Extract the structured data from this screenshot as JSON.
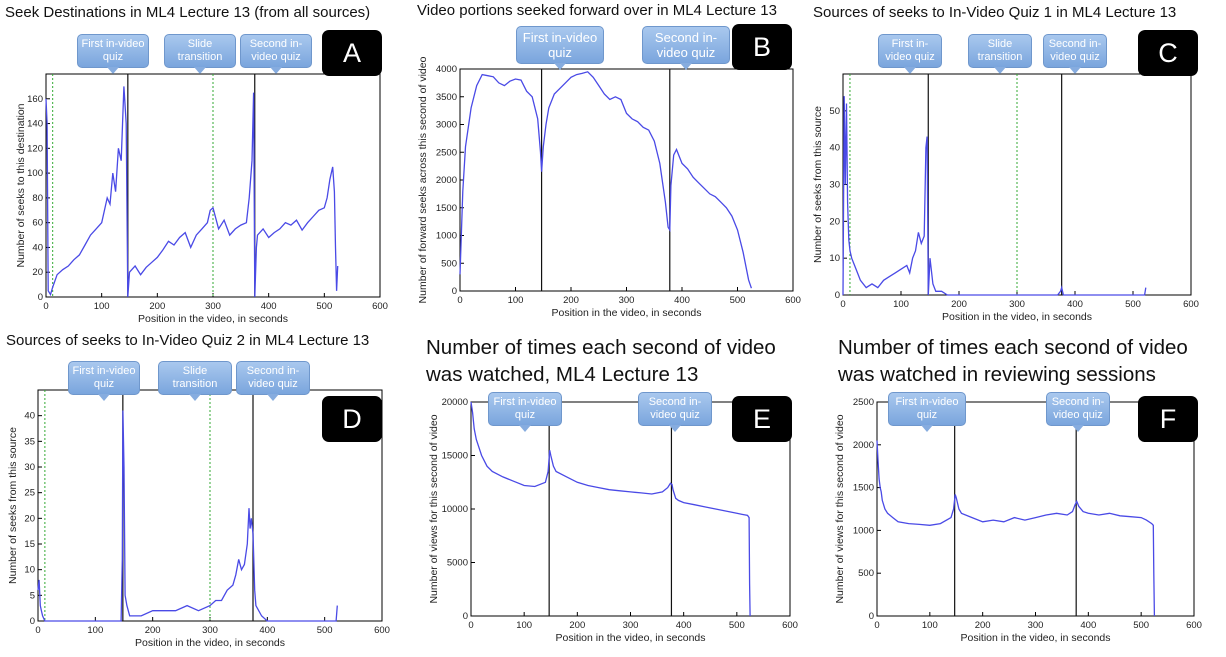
{
  "colors": {
    "line": "#4a4ae6",
    "marker": "#111111",
    "dotted": "#33aa33",
    "callout": "#8db3e6",
    "badge": "#000000"
  },
  "panels": [
    {
      "id": "A",
      "title": "Seek Destinations in ML4 Lecture 13 (from all sources)",
      "badge": "A",
      "callouts": [
        "First in-video quiz",
        "Slide transition",
        "Second in-video quiz"
      ]
    },
    {
      "id": "B",
      "title": "Video portions seeked forward over in ML4 Lecture 13",
      "badge": "B",
      "callouts": [
        "First in-video quiz",
        "Second in-video quiz"
      ]
    },
    {
      "id": "C",
      "title": "Sources of seeks to In-Video Quiz 1 in ML4 Lecture 13",
      "badge": "C",
      "callouts": [
        "First in-video quiz",
        "Slide transition",
        "Second in-video quiz"
      ]
    },
    {
      "id": "D",
      "title": "Sources of seeks to In-Video Quiz 2 in ML4 Lecture 13",
      "badge": "D",
      "callouts": [
        "First in-video quiz",
        "Slide transition",
        "Second in-video quiz"
      ]
    },
    {
      "id": "E",
      "title": "Number of times each second of video was watched, ML4 Lecture 13",
      "badge": "E",
      "callouts": [
        "First in-video quiz",
        "Second in-video quiz"
      ]
    },
    {
      "id": "F",
      "title": "Number of times each second of video was watched in reviewing sessions",
      "badge": "F",
      "callouts": [
        "First in-video quiz",
        "Second in-video quiz"
      ]
    }
  ],
  "chart_data": [
    {
      "panel": "A",
      "type": "line",
      "title": "Seek Destinations in ML4 Lecture 13 (from all sources)",
      "xlabel": "Position in the video, in seconds",
      "ylabel": "Number of seeks to this destination",
      "xlim": [
        0,
        600
      ],
      "ylim": [
        0,
        180
      ],
      "xticks": [
        0,
        100,
        200,
        300,
        400,
        500,
        600
      ],
      "yticks": [
        0,
        20,
        40,
        60,
        80,
        100,
        120,
        140,
        160
      ],
      "markers": [
        147,
        375
      ],
      "dotted": [
        12,
        300
      ],
      "series": [
        {
          "x": [
            0,
            2,
            4,
            8,
            12,
            20,
            30,
            40,
            50,
            60,
            70,
            80,
            90,
            100,
            110,
            115,
            120,
            125,
            130,
            135,
            140,
            144,
            147,
            150,
            160,
            170,
            180,
            190,
            200,
            210,
            220,
            230,
            240,
            250,
            260,
            270,
            280,
            290,
            295,
            300,
            310,
            320,
            330,
            340,
            350,
            360,
            365,
            370,
            373,
            375,
            378,
            380,
            390,
            400,
            410,
            420,
            430,
            440,
            450,
            460,
            470,
            480,
            490,
            500,
            505,
            510,
            515,
            518,
            520,
            522,
            524
          ],
          "y": [
            160,
            140,
            5,
            2,
            8,
            18,
            22,
            25,
            30,
            34,
            42,
            50,
            55,
            60,
            80,
            75,
            100,
            85,
            120,
            110,
            170,
            140,
            0,
            20,
            25,
            18,
            24,
            28,
            32,
            38,
            45,
            42,
            48,
            52,
            40,
            50,
            55,
            60,
            70,
            72,
            55,
            62,
            50,
            55,
            58,
            60,
            80,
            110,
            165,
            0,
            40,
            50,
            55,
            48,
            52,
            55,
            60,
            58,
            62,
            54,
            60,
            65,
            70,
            72,
            80,
            95,
            105,
            85,
            40,
            5,
            25
          ]
        }
      ]
    },
    {
      "panel": "B",
      "type": "line",
      "title": "Video portions seeked forward over in ML4 Lecture 13",
      "xlabel": "Position in the video, in seconds",
      "ylabel": "Number of forward seeks across this second of video",
      "xlim": [
        0,
        600
      ],
      "ylim": [
        0,
        4000
      ],
      "xticks": [
        0,
        100,
        200,
        300,
        400,
        500,
        600
      ],
      "yticks": [
        0,
        500,
        1000,
        1500,
        2000,
        2500,
        3000,
        3500,
        4000
      ],
      "markers": [
        147,
        378
      ],
      "dotted": [],
      "series": [
        {
          "x": [
            0,
            5,
            10,
            20,
            30,
            40,
            50,
            60,
            70,
            80,
            90,
            100,
            110,
            120,
            130,
            140,
            145,
            147,
            150,
            155,
            160,
            170,
            180,
            190,
            200,
            210,
            220,
            230,
            240,
            250,
            260,
            270,
            280,
            290,
            300,
            310,
            320,
            330,
            340,
            350,
            360,
            370,
            375,
            378,
            380,
            385,
            390,
            400,
            410,
            420,
            430,
            440,
            450,
            460,
            470,
            480,
            490,
            500,
            510,
            520,
            525
          ],
          "y": [
            300,
            1800,
            2600,
            3300,
            3700,
            3900,
            3880,
            3860,
            3750,
            3700,
            3780,
            3820,
            3800,
            3600,
            3500,
            3100,
            2500,
            2150,
            2600,
            3000,
            3300,
            3550,
            3650,
            3750,
            3850,
            3900,
            3920,
            3950,
            3850,
            3700,
            3550,
            3450,
            3500,
            3450,
            3200,
            3100,
            3050,
            2950,
            2900,
            2700,
            2300,
            1600,
            1150,
            1100,
            1900,
            2450,
            2550,
            2300,
            2200,
            2050,
            1950,
            1850,
            1750,
            1700,
            1600,
            1500,
            1350,
            1100,
            700,
            200,
            50
          ]
        }
      ]
    },
    {
      "panel": "C",
      "type": "line",
      "title": "Sources of seeks to In-Video Quiz 1 in ML4 Lecture 13",
      "xlabel": "Position in the video, in seconds",
      "ylabel": "Number of seeks from this source",
      "xlim": [
        0,
        600
      ],
      "ylim": [
        0,
        60
      ],
      "xticks": [
        0,
        100,
        200,
        300,
        400,
        500,
        600
      ],
      "yticks": [
        0,
        10,
        20,
        30,
        40,
        50
      ],
      "markers": [
        147,
        377
      ],
      "dotted": [
        12,
        300
      ],
      "series": [
        {
          "x": [
            0,
            2,
            4,
            6,
            8,
            10,
            12,
            15,
            20,
            25,
            30,
            40,
            50,
            60,
            70,
            80,
            90,
            100,
            110,
            115,
            120,
            125,
            130,
            135,
            140,
            143,
            145,
            147,
            150,
            155,
            160,
            170,
            180,
            200,
            250,
            300,
            350,
            370,
            375,
            377,
            380,
            400,
            450,
            500,
            520,
            522
          ],
          "y": [
            0,
            54,
            30,
            52,
            25,
            15,
            12,
            10,
            8,
            6,
            4,
            2,
            3,
            2,
            4,
            5,
            6,
            7,
            8,
            6,
            10,
            12,
            17,
            14,
            16,
            40,
            43,
            0,
            10,
            3,
            1,
            1,
            0,
            0,
            0,
            0,
            0,
            0,
            1,
            2,
            0,
            0,
            0,
            0,
            0,
            2
          ]
        }
      ]
    },
    {
      "panel": "D",
      "type": "line",
      "title": "Sources of seeks to In-Video Quiz 2 in ML4 Lecture 13",
      "xlabel": "Position in the video, in seconds",
      "ylabel": "Number of seeks from this source",
      "xlim": [
        0,
        600
      ],
      "ylim": [
        0,
        45
      ],
      "xticks": [
        0,
        100,
        200,
        300,
        400,
        500,
        600
      ],
      "yticks": [
        0,
        5,
        10,
        15,
        20,
        25,
        30,
        35,
        40
      ],
      "markers": [
        148,
        375
      ],
      "dotted": [
        12,
        300
      ],
      "series": [
        {
          "x": [
            0,
            2,
            4,
            6,
            8,
            12,
            20,
            40,
            80,
            120,
            140,
            145,
            147,
            148,
            150,
            152,
            155,
            160,
            170,
            180,
            200,
            220,
            240,
            260,
            280,
            300,
            310,
            320,
            330,
            340,
            345,
            350,
            355,
            360,
            365,
            368,
            370,
            372,
            375,
            378,
            380,
            390,
            400,
            450,
            500,
            520,
            522
          ],
          "y": [
            6,
            8,
            3,
            2,
            1,
            0,
            0,
            0,
            0,
            0,
            0,
            0,
            12,
            41,
            30,
            5,
            3,
            1,
            1,
            1,
            2,
            2,
            2,
            3,
            2,
            3,
            4,
            4,
            6,
            7,
            9,
            12,
            10,
            11,
            15,
            22,
            18,
            20,
            17,
            6,
            3,
            1,
            0,
            0,
            0,
            0,
            3
          ]
        }
      ]
    },
    {
      "panel": "E",
      "type": "line",
      "title": "Number of times each second of video was watched, ML4 Lecture 13",
      "xlabel": "Position in the video, in seconds",
      "ylabel": "Number of views for this second of video",
      "xlim": [
        0,
        600
      ],
      "ylim": [
        0,
        20000
      ],
      "xticks": [
        0,
        100,
        200,
        300,
        400,
        500,
        600
      ],
      "yticks": [
        0,
        5000,
        10000,
        15000,
        20000
      ],
      "markers": [
        147,
        377
      ],
      "dotted": [],
      "series": [
        {
          "x": [
            0,
            3,
            6,
            10,
            20,
            30,
            40,
            60,
            80,
            100,
            120,
            140,
            145,
            148,
            150,
            155,
            160,
            180,
            200,
            220,
            240,
            260,
            280,
            300,
            320,
            340,
            360,
            370,
            375,
            378,
            380,
            385,
            390,
            400,
            420,
            440,
            460,
            480,
            500,
            510,
            520,
            523,
            524,
            525
          ],
          "y": [
            20000,
            19000,
            17500,
            16500,
            15000,
            14000,
            13500,
            13000,
            12600,
            12200,
            12100,
            12500,
            13500,
            15500,
            15000,
            14000,
            13500,
            13000,
            12500,
            12200,
            12000,
            11800,
            11700,
            11600,
            11500,
            11400,
            11600,
            12000,
            12400,
            12300,
            11800,
            11000,
            10800,
            10600,
            10400,
            10200,
            10000,
            9800,
            9600,
            9500,
            9400,
            9200,
            3000,
            0
          ]
        }
      ]
    },
    {
      "panel": "F",
      "type": "line",
      "title": "Number of times each second of video was watched in reviewing sessions",
      "xlabel": "Position in the video, in seconds",
      "ylabel": "Number of views for this second of video",
      "xlim": [
        0,
        600
      ],
      "ylim": [
        0,
        2500
      ],
      "xticks": [
        0,
        100,
        200,
        300,
        400,
        500,
        600
      ],
      "yticks": [
        0,
        500,
        1000,
        1500,
        2000,
        2500
      ],
      "markers": [
        147,
        377
      ],
      "dotted": [],
      "series": [
        {
          "x": [
            0,
            2,
            4,
            6,
            8,
            10,
            15,
            20,
            30,
            40,
            60,
            80,
            100,
            120,
            140,
            145,
            148,
            150,
            155,
            160,
            180,
            200,
            220,
            240,
            260,
            280,
            300,
            320,
            340,
            360,
            370,
            375,
            378,
            382,
            390,
            400,
            420,
            440,
            460,
            480,
            500,
            510,
            520,
            523,
            524,
            525
          ],
          "y": [
            2050,
            1800,
            1600,
            1500,
            1450,
            1350,
            1250,
            1200,
            1150,
            1100,
            1080,
            1070,
            1060,
            1080,
            1150,
            1250,
            1420,
            1380,
            1250,
            1200,
            1150,
            1100,
            1120,
            1100,
            1150,
            1120,
            1150,
            1180,
            1200,
            1180,
            1220,
            1300,
            1340,
            1280,
            1220,
            1200,
            1180,
            1200,
            1170,
            1160,
            1150,
            1120,
            1080,
            1060,
            500,
            0
          ]
        }
      ]
    }
  ]
}
